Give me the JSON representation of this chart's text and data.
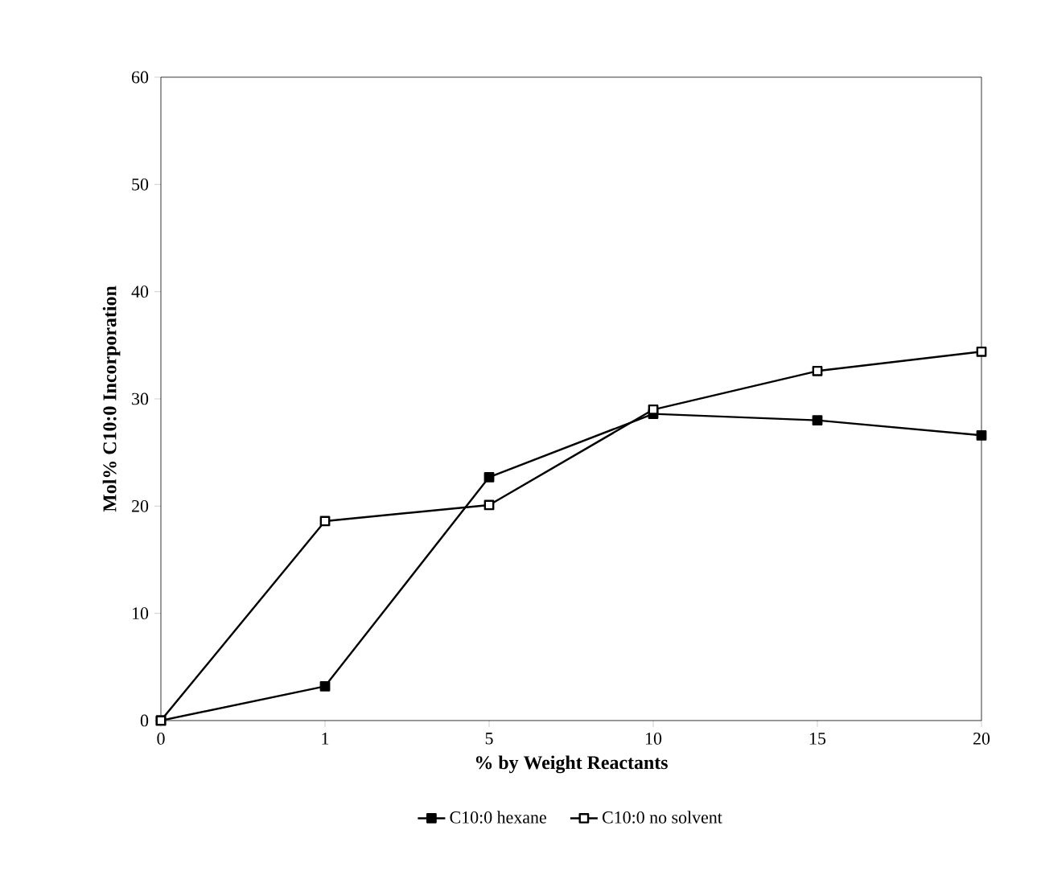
{
  "chart_data": {
    "type": "line",
    "xlabel": "% by Weight Reactants",
    "ylabel": "Mol% C10:0 Incorporation",
    "categories": [
      "0",
      "1",
      "5",
      "10",
      "15",
      "20"
    ],
    "series": [
      {
        "name": "C10:0 hexane",
        "color": "#000000",
        "values": [
          0,
          3.2,
          22.7,
          28.6,
          28.0,
          26.6
        ]
      },
      {
        "name": "C10:0 no solvent",
        "color": "#000000",
        "values": [
          0,
          18.6,
          20.1,
          29.0,
          32.6,
          34.4
        ]
      }
    ],
    "ylim": [
      0,
      60
    ],
    "yticks": [
      0,
      10,
      20,
      30,
      40,
      50,
      60
    ],
    "marker": "square",
    "line_style": "solid",
    "legend": "bottom",
    "grid": false
  }
}
